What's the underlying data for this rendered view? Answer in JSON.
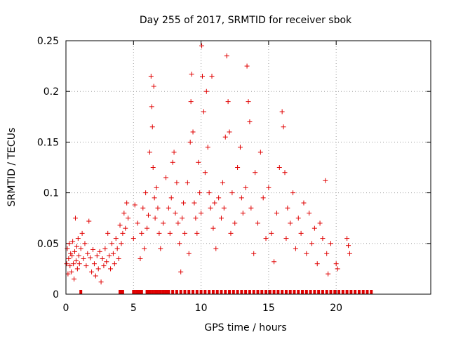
{
  "chart_data": {
    "type": "scatter",
    "title": "Day 255 of 2017, SRMTID for receiver sbok",
    "xlabel": "GPS time / hours",
    "ylabel": "SRMTID / TECUs",
    "xlim": [
      0,
      27
    ],
    "ylim": [
      0,
      0.25
    ],
    "xticks": [
      0,
      5,
      10,
      15,
      20
    ],
    "yticks": [
      0,
      0.05,
      0.1,
      0.15,
      0.2,
      0.25
    ],
    "ytick_labels": [
      "0",
      "0.05",
      "0.1",
      "0.15",
      "0.2",
      "0.25"
    ],
    "grid": true,
    "marker": "+",
    "color": "#e00000",
    "series": [
      {
        "name": "SRMTID",
        "points": [
          [
            0.05,
            0.03
          ],
          [
            0.1,
            0.045
          ],
          [
            0.15,
            0.02
          ],
          [
            0.2,
            0.035
          ],
          [
            0.25,
            0.05
          ],
          [
            0.3,
            0.028
          ],
          [
            0.35,
            0.04
          ],
          [
            0.4,
            0.022
          ],
          [
            0.45,
            0.038
          ],
          [
            0.5,
            0.052
          ],
          [
            0.55,
            0.03
          ],
          [
            0.6,
            0.015
          ],
          [
            0.65,
            0.042
          ],
          [
            0.7,
            0.075
          ],
          [
            0.75,
            0.033
          ],
          [
            0.8,
            0.047
          ],
          [
            0.85,
            0.025
          ],
          [
            0.9,
            0.055
          ],
          [
            0.95,
            0.038
          ],
          [
            1.0,
            0.03
          ],
          [
            1.1,
            0.045
          ],
          [
            1.2,
            0.06
          ],
          [
            1.3,
            0.035
          ],
          [
            1.4,
            0.05
          ],
          [
            1.5,
            0.028
          ],
          [
            1.6,
            0.04
          ],
          [
            1.7,
            0.072
          ],
          [
            1.8,
            0.036
          ],
          [
            1.9,
            0.022
          ],
          [
            2.0,
            0.044
          ],
          [
            2.1,
            0.03
          ],
          [
            2.2,
            0.018
          ],
          [
            2.3,
            0.038
          ],
          [
            2.4,
            0.025
          ],
          [
            2.5,
            0.042
          ],
          [
            2.6,
            0.012
          ],
          [
            2.7,
            0.035
          ],
          [
            2.8,
            0.028
          ],
          [
            2.9,
            0.045
          ],
          [
            3.0,
            0.032
          ],
          [
            3.1,
            0.06
          ],
          [
            3.2,
            0.038
          ],
          [
            3.3,
            0.025
          ],
          [
            3.4,
            0.05
          ],
          [
            3.5,
            0.04
          ],
          [
            3.6,
            0.03
          ],
          [
            3.7,
            0.055
          ],
          [
            3.8,
            0.045
          ],
          [
            3.9,
            0.035
          ],
          [
            4.0,
            0.068
          ],
          [
            4.1,
            0.05
          ],
          [
            4.2,
            0.06
          ],
          [
            4.3,
            0.08
          ],
          [
            4.4,
            0.065
          ],
          [
            4.5,
            0.09
          ],
          [
            4.6,
            0.075
          ],
          [
            5.0,
            0.055
          ],
          [
            5.1,
            0.088
          ],
          [
            5.3,
            0.07
          ],
          [
            5.5,
            0.035
          ],
          [
            5.6,
            0.06
          ],
          [
            5.7,
            0.085
          ],
          [
            5.8,
            0.045
          ],
          [
            5.9,
            0.1
          ],
          [
            6.0,
            0.065
          ],
          [
            6.1,
            0.078
          ],
          [
            6.2,
            0.14
          ],
          [
            6.3,
            0.215
          ],
          [
            6.35,
            0.185
          ],
          [
            6.4,
            0.165
          ],
          [
            6.45,
            0.125
          ],
          [
            6.5,
            0.205
          ],
          [
            6.55,
            0.095
          ],
          [
            6.6,
            0.075
          ],
          [
            6.7,
            0.105
          ],
          [
            6.8,
            0.085
          ],
          [
            6.9,
            0.06
          ],
          [
            7.0,
            0.045
          ],
          [
            7.2,
            0.07
          ],
          [
            7.4,
            0.115
          ],
          [
            7.6,
            0.085
          ],
          [
            7.7,
            0.06
          ],
          [
            7.8,
            0.095
          ],
          [
            7.9,
            0.13
          ],
          [
            8.0,
            0.14
          ],
          [
            8.1,
            0.08
          ],
          [
            8.2,
            0.11
          ],
          [
            8.3,
            0.07
          ],
          [
            8.4,
            0.05
          ],
          [
            8.5,
            0.022
          ],
          [
            8.6,
            0.075
          ],
          [
            8.7,
            0.09
          ],
          [
            8.8,
            0.06
          ],
          [
            9.0,
            0.11
          ],
          [
            9.1,
            0.04
          ],
          [
            9.2,
            0.15
          ],
          [
            9.25,
            0.19
          ],
          [
            9.3,
            0.217
          ],
          [
            9.4,
            0.16
          ],
          [
            9.5,
            0.09
          ],
          [
            9.6,
            0.075
          ],
          [
            9.7,
            0.06
          ],
          [
            9.8,
            0.13
          ],
          [
            9.9,
            0.1
          ],
          [
            10.0,
            0.08
          ],
          [
            10.05,
            0.245
          ],
          [
            10.1,
            0.215
          ],
          [
            10.2,
            0.18
          ],
          [
            10.3,
            0.12
          ],
          [
            10.4,
            0.2
          ],
          [
            10.5,
            0.145
          ],
          [
            10.6,
            0.1
          ],
          [
            10.7,
            0.085
          ],
          [
            10.8,
            0.215
          ],
          [
            10.9,
            0.065
          ],
          [
            11.0,
            0.09
          ],
          [
            11.1,
            0.045
          ],
          [
            11.3,
            0.095
          ],
          [
            11.5,
            0.075
          ],
          [
            11.6,
            0.11
          ],
          [
            11.7,
            0.085
          ],
          [
            11.8,
            0.155
          ],
          [
            11.9,
            0.235
          ],
          [
            12.0,
            0.19
          ],
          [
            12.1,
            0.16
          ],
          [
            12.2,
            0.06
          ],
          [
            12.3,
            0.1
          ],
          [
            12.5,
            0.07
          ],
          [
            12.7,
            0.125
          ],
          [
            12.9,
            0.145
          ],
          [
            13.0,
            0.095
          ],
          [
            13.1,
            0.08
          ],
          [
            13.3,
            0.105
          ],
          [
            13.4,
            0.225
          ],
          [
            13.5,
            0.19
          ],
          [
            13.6,
            0.17
          ],
          [
            13.7,
            0.085
          ],
          [
            13.9,
            0.04
          ],
          [
            14.0,
            0.12
          ],
          [
            14.2,
            0.07
          ],
          [
            14.4,
            0.14
          ],
          [
            14.6,
            0.095
          ],
          [
            14.8,
            0.055
          ],
          [
            15.0,
            0.105
          ],
          [
            15.2,
            0.06
          ],
          [
            15.4,
            0.032
          ],
          [
            15.6,
            0.08
          ],
          [
            15.8,
            0.125
          ],
          [
            16.0,
            0.18
          ],
          [
            16.1,
            0.165
          ],
          [
            16.2,
            0.12
          ],
          [
            16.3,
            0.055
          ],
          [
            16.4,
            0.085
          ],
          [
            16.6,
            0.07
          ],
          [
            16.8,
            0.1
          ],
          [
            17.0,
            0.045
          ],
          [
            17.2,
            0.075
          ],
          [
            17.4,
            0.06
          ],
          [
            17.6,
            0.09
          ],
          [
            17.8,
            0.04
          ],
          [
            18.0,
            0.08
          ],
          [
            18.2,
            0.05
          ],
          [
            18.4,
            0.065
          ],
          [
            18.6,
            0.03
          ],
          [
            18.8,
            0.07
          ],
          [
            19.0,
            0.055
          ],
          [
            19.2,
            0.112
          ],
          [
            19.3,
            0.04
          ],
          [
            19.4,
            0.02
          ],
          [
            19.6,
            0.05
          ],
          [
            20.0,
            0.03
          ],
          [
            20.1,
            0.025
          ],
          [
            20.8,
            0.055
          ],
          [
            20.9,
            0.048
          ],
          [
            21.0,
            0.04
          ]
        ]
      }
    ],
    "zero_rug_hours": [
      1.1,
      4.0,
      4.2,
      5.0,
      5.2,
      5.4,
      5.6,
      6.0,
      6.2,
      6.4,
      6.6,
      6.8,
      7.0,
      7.2,
      7.4,
      7.6,
      7.9,
      8.2,
      8.5,
      8.8,
      9.1,
      9.4,
      9.7,
      10.0,
      10.3,
      10.6,
      10.9,
      11.2,
      11.5,
      11.8,
      12.1,
      12.4,
      12.7,
      13.0,
      13.3,
      13.6,
      13.9,
      14.2,
      14.5,
      14.8,
      15.1,
      15.4,
      15.7,
      16.0,
      16.3,
      16.6,
      16.9,
      17.2,
      17.5,
      17.8,
      18.1,
      18.4,
      18.7,
      19.0,
      19.3,
      19.6,
      19.9,
      20.2,
      20.5,
      20.8,
      21.1,
      21.4,
      21.7,
      22.0,
      22.3,
      22.6
    ]
  }
}
